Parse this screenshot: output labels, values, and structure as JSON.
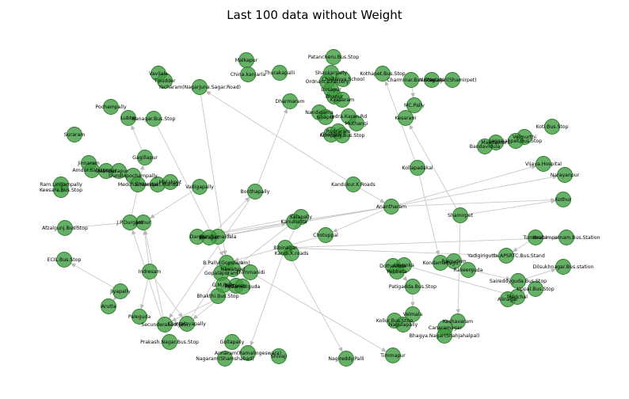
{
  "title": "Last 100 data without Weight",
  "nodes": [
    {
      "id": "malkapur",
      "label": "Malkapur"
    },
    {
      "id": "china_kanjarla",
      "label": "China.kanjarla"
    },
    {
      "id": "thurakapalli",
      "label": "Thurakapalli"
    },
    {
      "id": "dharmaram",
      "label": "Dharmaram"
    },
    {
      "id": "patancheru",
      "label": "Patancheru.Bus.Stop"
    },
    {
      "id": "shankarpally",
      "label": "Shankarpally"
    },
    {
      "id": "ordnance_factory",
      "label": "Ordnance.Factory"
    },
    {
      "id": "chaitanya_school",
      "label": "Chaitanya.School"
    },
    {
      "id": "busapur",
      "label": "Busapur"
    },
    {
      "id": "bhanur",
      "label": "Bhanur"
    },
    {
      "id": "kyasaram",
      "label": "Kyasaram"
    },
    {
      "id": "nandigama",
      "label": "Nandigama"
    },
    {
      "id": "isnapur",
      "label": "Isnapur"
    },
    {
      "id": "indra_karan",
      "label": "Indra.Karan.Rd"
    },
    {
      "id": "muthangi",
      "label": "Muthangi"
    },
    {
      "id": "ghanpur",
      "label": "Ghanpur"
    },
    {
      "id": "rudraram",
      "label": "Rudraram"
    },
    {
      "id": "kompally",
      "label": "Kompally.Bus.Stop"
    },
    {
      "id": "kothapet",
      "label": "Kothapet.Bus.Stop"
    },
    {
      "id": "charminar",
      "label": "Charminar.Bus.Stop"
    },
    {
      "id": "yadagiri",
      "label": "Yadagiri(Shamirpet)"
    },
    {
      "id": "mekaguda",
      "label": "Mekaguda"
    },
    {
      "id": "mc_pally",
      "label": "MC.Pally"
    },
    {
      "id": "kesaram",
      "label": "Kesaram"
    },
    {
      "id": "kollapadakal",
      "label": "Kollapadakal"
    },
    {
      "id": "koti",
      "label": "Koti.Bus.Stop"
    },
    {
      "id": "velmurthi",
      "label": "Velmurthi"
    },
    {
      "id": "jaggaiahpet",
      "label": "Jaggaiahpet.Bus.Stop"
    },
    {
      "id": "mandamarri",
      "label": "Mandamarri"
    },
    {
      "id": "bandavidula",
      "label": "Bandavidula"
    },
    {
      "id": "vijaya",
      "label": "Vijaya.Hospital"
    },
    {
      "id": "narayanpur",
      "label": "Narayanpur"
    },
    {
      "id": "kothur",
      "label": "Kothur"
    },
    {
      "id": "vavilala",
      "label": "Vavilala"
    },
    {
      "id": "tripuder",
      "label": "T.pudder"
    },
    {
      "id": "yacharam",
      "label": "Yacharam(Nagarjuna.Sagar.Road)"
    },
    {
      "id": "pochampally",
      "label": "Pochampally"
    },
    {
      "id": "lubbo",
      "label": "Lubbo"
    },
    {
      "id": "banagar",
      "label": "Banagar.Bus.Stop"
    },
    {
      "id": "suraram",
      "label": "Suraram"
    },
    {
      "id": "gagillapur",
      "label": "Gagillapur"
    },
    {
      "id": "jinnaram",
      "label": "Jinnaram"
    },
    {
      "id": "amdur",
      "label": "Amdur.Salakpur"
    },
    {
      "id": "dabilpur",
      "label": "Dabilpur"
    },
    {
      "id": "solapur",
      "label": "Solapur"
    },
    {
      "id": "gundlapochampally",
      "label": "Gundlapochampally"
    },
    {
      "id": "medchal_mandal",
      "label": "Medchal.Mandal"
    },
    {
      "id": "shamirpet_m",
      "label": "Shamirpet.Mandal"
    },
    {
      "id": "malakpet",
      "label": "Malakpet"
    },
    {
      "id": "ramlingampally",
      "label": "Ram.Lingampally"
    },
    {
      "id": "keesara",
      "label": "Keesara.Bus.Stop"
    },
    {
      "id": "vadigapally",
      "label": "Vadigapally"
    },
    {
      "id": "bonthapally",
      "label": "Bonthapally"
    },
    {
      "id": "kandukur",
      "label": "Kandukur.X.Roads"
    },
    {
      "id": "anantharam",
      "label": "Anantharam"
    },
    {
      "id": "shamirpet",
      "label": "Shamirpet"
    },
    {
      "id": "jpdurgam",
      "label": "J.P.Durgam"
    },
    {
      "id": "jothur",
      "label": "Jothur"
    },
    {
      "id": "afzalgunj",
      "label": "Afzalgunj.Bus.Stop"
    },
    {
      "id": "darga",
      "label": "Darga"
    },
    {
      "id": "gundlamaidala",
      "label": "Gundlamaidala"
    },
    {
      "id": "kokapet",
      "label": "Kokapet"
    },
    {
      "id": "kalapally",
      "label": "Kalapally"
    },
    {
      "id": "kanukunta",
      "label": "Kanukunta"
    },
    {
      "id": "chotuppal",
      "label": "Chotuppal"
    },
    {
      "id": "bibinagar",
      "label": "Bibinagar"
    },
    {
      "id": "kandi_x",
      "label": "Kandi.X.roads"
    },
    {
      "id": "tummalur",
      "label": "Tummalur"
    },
    {
      "id": "ibrahimpatnam",
      "label": "Ibrahimpatnam.Bus.Station"
    },
    {
      "id": "yadigirigutta",
      "label": "Yadigirigutta.APSRTC.Bus.Stand"
    },
    {
      "id": "dilsukhnagar",
      "label": "Dilsukhnagar.Bus.station"
    },
    {
      "id": "ecil",
      "label": "ECIL.Bus.Stop"
    },
    {
      "id": "indresam",
      "label": "Indresam"
    },
    {
      "id": "bpally",
      "label": "B.Pally(Gopularam)"
    },
    {
      "id": "gopalapuram",
      "label": "Gopalapuram"
    },
    {
      "id": "thimmanidi",
      "label": "Thimmanidi"
    },
    {
      "id": "nawabpet",
      "label": "Nawabpet"
    },
    {
      "id": "bhakthinagar",
      "label": "Bhakthi.Bus.Stop"
    },
    {
      "id": "gm_pally",
      "label": "G.M.Pally"
    },
    {
      "id": "battaram",
      "label": "Battaram"
    },
    {
      "id": "rodamiaguda",
      "label": "Rodamia.guda"
    },
    {
      "id": "dothavoda",
      "label": "Dothavoda"
    },
    {
      "id": "loyanka",
      "label": "Loyanka"
    },
    {
      "id": "pebbeta",
      "label": "Pebbeta"
    },
    {
      "id": "kondamadugu",
      "label": "Kondamadugu"
    },
    {
      "id": "raigudem",
      "label": "Raigudem"
    },
    {
      "id": "rakeerguda",
      "label": "Rakeerguda"
    },
    {
      "id": "saireddyguda",
      "label": "Saireddyguda.Bus.Stop"
    },
    {
      "id": "uppal",
      "label": "Uppal.Bus.Stop"
    },
    {
      "id": "alinagar",
      "label": "Alinagar"
    },
    {
      "id": "medchal",
      "label": "Medchal"
    },
    {
      "id": "patigadda",
      "label": "Patigadda.Bus.Stop"
    },
    {
      "id": "jiyapally",
      "label": "Jiyapally"
    },
    {
      "id": "arutla",
      "label": "Arutla"
    },
    {
      "id": "paleguda",
      "label": "Paleguda"
    },
    {
      "id": "secunderabad",
      "label": "Secunderabad(JBS)"
    },
    {
      "id": "chintalayapally",
      "label": "Chintalayapally"
    },
    {
      "id": "velmala",
      "label": "Velmala"
    },
    {
      "id": "kollur",
      "label": "Kollur.Bus.Stop"
    },
    {
      "id": "nagulapally",
      "label": "Nagulapally"
    },
    {
      "id": "keshavaram",
      "label": "Keshavaram"
    },
    {
      "id": "canaramagar",
      "label": "Canaramagar"
    },
    {
      "id": "bhagya",
      "label": "Bhagya.Nagar(Shahjahalpal)"
    },
    {
      "id": "gollapally",
      "label": "Gollapally"
    },
    {
      "id": "prakash",
      "label": "Prakash.Nagar.Bus.Stop"
    },
    {
      "id": "annaram",
      "label": "Annaram(Ramalingeswara)"
    },
    {
      "id": "nagaram",
      "label": "Nagaram(Shamshabad)"
    },
    {
      "id": "shivaji",
      "label": "Shivaji"
    },
    {
      "id": "nagireddy",
      "label": "Nagireddy.Palli"
    },
    {
      "id": "timmapur",
      "label": "Timmapur"
    }
  ]
}
